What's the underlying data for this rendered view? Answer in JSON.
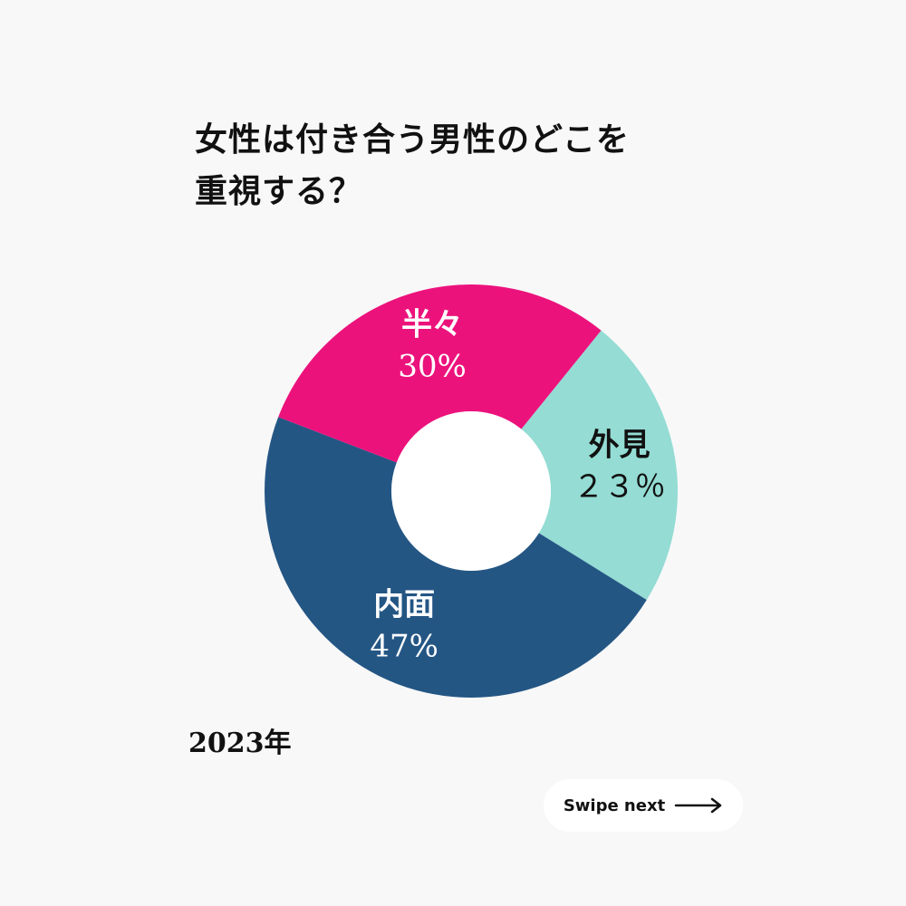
{
  "title": {
    "line1": "女性は付き合う男性のどこを",
    "line2": "重視する？"
  },
  "chart_data": {
    "type": "pie",
    "donut": true,
    "slices": [
      {
        "label": "外見",
        "value": 23,
        "value_text": "２３％",
        "color": "#94dcd4",
        "text_color": "#111111"
      },
      {
        "label": "内面",
        "value": 47,
        "value_text": "47%",
        "color": "#245684",
        "text_color": "#ffffff"
      },
      {
        "label": "半々",
        "value": 30,
        "value_text": "30%",
        "color": "#ec127c",
        "text_color": "#ffffff"
      }
    ]
  },
  "year_label": "2023年",
  "swipe": {
    "label": "Swipe next",
    "icon": "arrow-right-icon"
  }
}
